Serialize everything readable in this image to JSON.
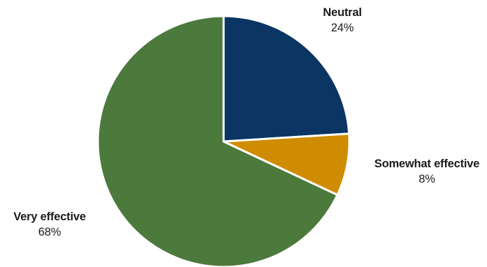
{
  "chart_data": {
    "type": "pie",
    "title": "",
    "slices": [
      {
        "name": "Neutral",
        "value": 24,
        "display": "24%",
        "color": "#0b3563"
      },
      {
        "name": "Somewhat effective",
        "value": 8,
        "display": "8%",
        "color": "#d08c00"
      },
      {
        "name": "Very effective",
        "value": 68,
        "display": "68%",
        "color": "#4b7a3c"
      }
    ],
    "start_angle_deg": 0,
    "direction": "clockwise",
    "legend": "none",
    "slice_border_color": "#ffffff"
  }
}
